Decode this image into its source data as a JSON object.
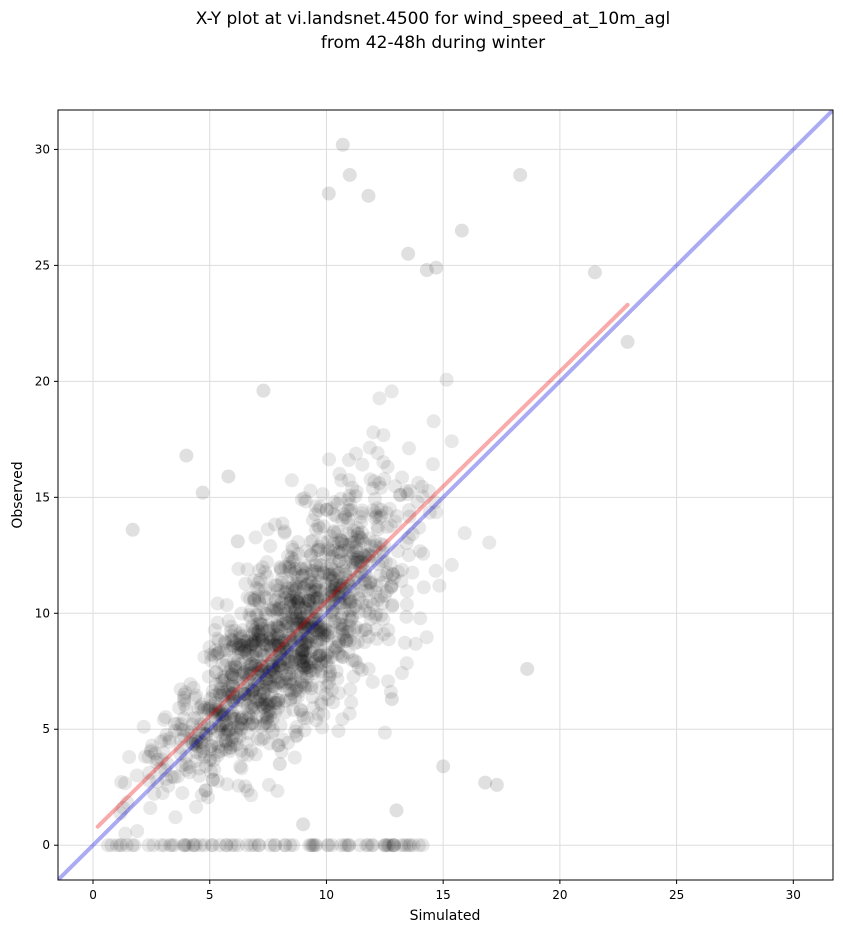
{
  "chart_data": {
    "type": "scatter",
    "title_line1": "X-Y plot at vi.landsnet.4500 for wind_speed_at_10m_agl",
    "title_line2": "from 42-48h during winter",
    "xlabel": "Simulated",
    "ylabel": "Observed",
    "xlim": [
      -1.5,
      31.7
    ],
    "ylim": [
      -1.5,
      31.7
    ],
    "xticks": [
      0,
      5,
      10,
      15,
      20,
      25,
      30
    ],
    "yticks": [
      0,
      5,
      10,
      15,
      20,
      25,
      30
    ],
    "grid": true,
    "colors": {
      "points": "#000000",
      "identity_line": "#0000dd",
      "fit_line": "#ee0000",
      "grid": "#dddddd"
    },
    "identity_line": {
      "x": [
        -1.5,
        31.7
      ],
      "y": [
        -1.5,
        31.7
      ]
    },
    "fit_line": {
      "x": [
        0.2,
        22.9
      ],
      "y": [
        0.8,
        23.3
      ]
    },
    "points_sample": {
      "x": [
        1.7,
        4.0,
        4.7,
        5.8,
        6.2,
        7.3,
        10.7,
        11.0,
        10.1,
        11.8,
        13.5,
        14.3,
        14.7,
        15.8,
        18.3,
        21.5,
        22.9,
        18.6,
        16.8,
        17.3,
        13.0,
        9.0,
        8.0,
        12.8,
        15.0
      ],
      "y": [
        13.6,
        16.8,
        15.2,
        15.9,
        13.1,
        19.6,
        30.2,
        28.9,
        28.1,
        28.0,
        25.5,
        24.8,
        24.9,
        26.5,
        28.9,
        24.7,
        21.7,
        7.6,
        2.7,
        2.6,
        1.5,
        0.9,
        3.5,
        6.3,
        3.4
      ]
    }
  }
}
